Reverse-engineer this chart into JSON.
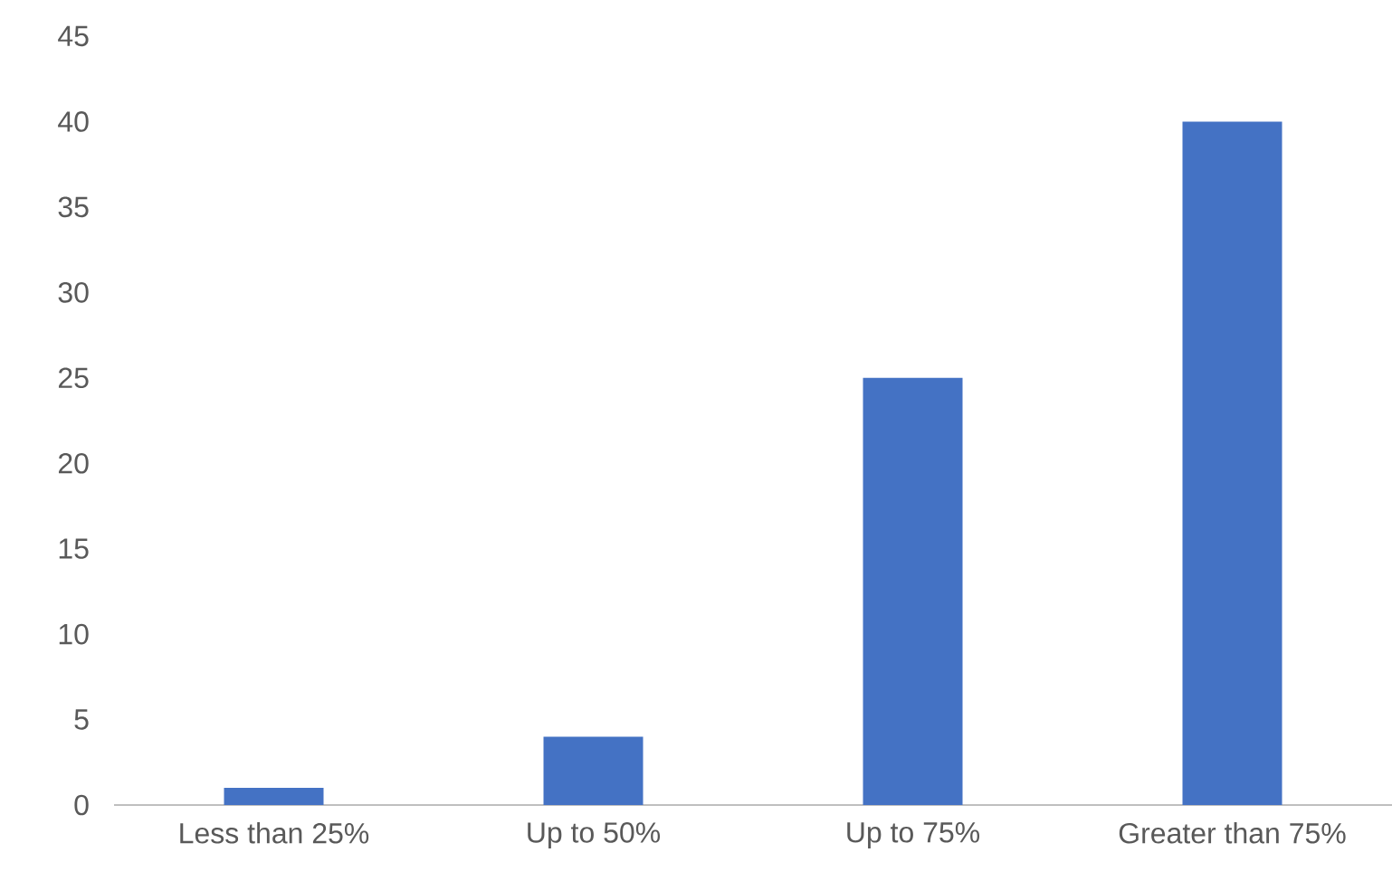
{
  "chart_data": {
    "type": "bar",
    "categories": [
      "Less than 25%",
      "Up to 50%",
      "Up to 75%",
      "Greater than 75%"
    ],
    "values": [
      1,
      4,
      25,
      40
    ],
    "color": "#4472c4",
    "ylim": [
      0,
      45
    ],
    "yticks": [
      0,
      5,
      10,
      15,
      20,
      25,
      30,
      35,
      40,
      45
    ]
  }
}
